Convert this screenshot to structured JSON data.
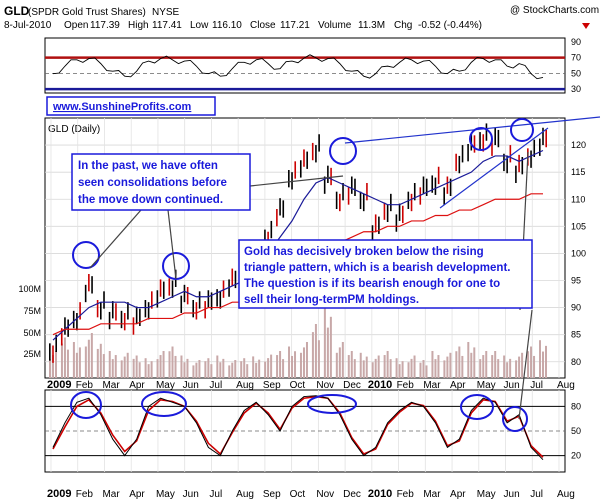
{
  "header": {
    "symbol": "GLD",
    "name": "(SPDR Gold Trust Shares)",
    "exchange": "NYSE",
    "credit": "@ StockCharts.com",
    "date": "8-Jul-2010",
    "open_label": "Open",
    "open": "117.39",
    "high_label": "High",
    "high": "117.41",
    "low_label": "Low",
    "low": "116.10",
    "close_label": "Close",
    "close": "117.21",
    "volume_label": "Volume",
    "volume": "11.3M",
    "chg_label": "Chg",
    "chg": "-0.52 (-0.44%)"
  },
  "url": "www.SunshineProfits.com",
  "price_panel_label": "GLD (Daily)",
  "annotations": {
    "left_note": [
      "In the past, we have often",
      "seen consolidations before",
      "the move down continued."
    ],
    "right_note": [
      "Gold has decisively broken below the rising",
      "triangle pattern, which is a bearish development.",
      "The question is if its bearish enough for one to",
      "sell their long-termPM holdings."
    ]
  },
  "colors": {
    "up_bar": "#000000",
    "down_bar": "#cc0000",
    "ma_blue": "#1a1a99",
    "ma_red": "#dd1111",
    "rsi_line": "#000000",
    "rsi_band": "#b01010",
    "stoch_fast": "#000000",
    "stoch_slow": "#cc0000",
    "volume_bar": "#c8a8a8",
    "annotation": "#1a1adb",
    "trendline": "#2233cc"
  },
  "chart_data": [
    {
      "type": "line",
      "panel": "rsi",
      "y_ticks": [
        30,
        50,
        70,
        90
      ],
      "ylim": [
        25,
        95
      ],
      "bands": [
        70,
        30
      ]
    },
    {
      "type": "candlestick",
      "panel": "price",
      "y_ticks": [
        80,
        85,
        90,
        95,
        100,
        105,
        110,
        115,
        120
      ],
      "ylim": [
        77,
        125
      ],
      "x_labels": [
        "2009",
        "Feb",
        "Mar",
        "Apr",
        "May",
        "Jun",
        "Jul",
        "Aug",
        "Sep",
        "Oct",
        "Nov",
        "Dec",
        "2010",
        "Feb",
        "Mar",
        "Apr",
        "May",
        "Jun",
        "Jul",
        "Aug"
      ],
      "close_series": [
        82,
        86,
        88,
        94,
        90,
        89,
        88,
        88,
        90,
        93,
        94,
        92,
        90,
        91,
        92,
        95,
        97,
        100,
        103,
        108,
        114,
        117,
        119,
        114,
        110,
        112,
        110,
        105,
        108,
        107,
        110,
        112,
        113,
        112,
        117,
        120,
        121,
        121,
        117,
        116,
        118,
        121
      ],
      "ma50": [
        84,
        86,
        88,
        90,
        91,
        91,
        91,
        90,
        90,
        91,
        92,
        93,
        92,
        92,
        93,
        94,
        95,
        97,
        100,
        103,
        106,
        110,
        113,
        114,
        113,
        112,
        111,
        110,
        109,
        109,
        110,
        111,
        112,
        113,
        114,
        115,
        117,
        118,
        118,
        117,
        118,
        119
      ],
      "ma200": [
        85,
        86,
        86,
        86,
        87,
        87,
        87,
        87,
        88,
        88,
        88,
        89,
        89,
        90,
        90,
        91,
        91,
        92,
        93,
        94,
        96,
        98,
        100,
        101,
        102,
        103,
        104,
        104,
        105,
        105,
        106,
        106,
        107,
        107,
        108,
        108,
        109,
        110,
        110,
        110,
        111,
        111
      ]
    },
    {
      "type": "bar",
      "panel": "volume",
      "y_ticks": [
        "25M",
        "50M",
        "75M",
        "100M"
      ],
      "values": [
        30,
        45,
        40,
        50,
        38,
        30,
        28,
        25,
        22,
        30,
        35,
        25,
        20,
        22,
        25,
        20,
        22,
        24,
        26,
        30,
        35,
        40,
        60,
        80,
        40,
        30,
        28,
        25,
        30,
        22,
        25,
        20,
        30,
        28,
        35,
        40,
        30,
        30,
        25,
        28,
        35,
        42
      ]
    },
    {
      "type": "line",
      "panel": "stochastic",
      "y_ticks": [
        20,
        50,
        80
      ],
      "ylim": [
        0,
        100
      ],
      "fast": [
        30,
        60,
        85,
        90,
        70,
        40,
        20,
        40,
        80,
        90,
        85,
        80,
        60,
        30,
        20,
        50,
        75,
        85,
        70,
        50,
        80,
        92,
        93,
        90,
        70,
        40,
        20,
        30,
        60,
        75,
        85,
        80,
        60,
        30,
        40,
        75,
        90,
        85,
        60,
        70,
        30,
        15
      ],
      "slow": [
        28,
        55,
        80,
        88,
        72,
        45,
        25,
        38,
        75,
        88,
        86,
        80,
        62,
        35,
        22,
        48,
        72,
        84,
        72,
        52,
        78,
        90,
        92,
        90,
        72,
        42,
        22,
        28,
        58,
        73,
        84,
        81,
        62,
        32,
        38,
        72,
        88,
        86,
        62,
        68,
        32,
        18
      ]
    }
  ]
}
